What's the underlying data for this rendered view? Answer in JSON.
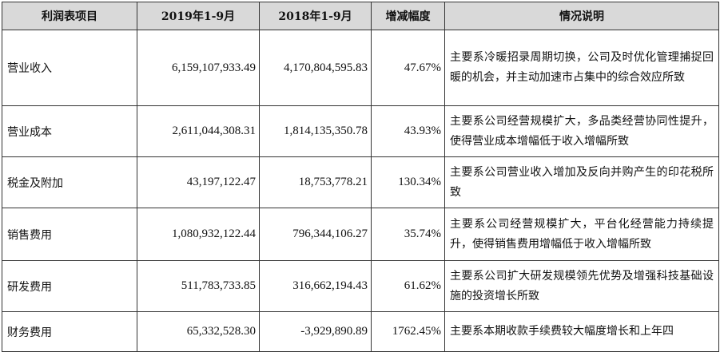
{
  "table": {
    "headers": [
      "利润表项目",
      "2019年1-9月",
      "2018年1-9月",
      "增减幅度",
      "情况说明"
    ],
    "rows": [
      {
        "item": "营业收入",
        "y2019": "6,159,107,933.49",
        "y2018": "4,170,804,595.83",
        "change": "47.67%",
        "note": "主要系冷暖招录周期切换，公司及时优化管理捕捉回暖的机会，并主动加速市占集中的综合效应所致"
      },
      {
        "item": "营业成本",
        "y2019": "2,611,044,308.31",
        "y2018": "1,814,135,350.78",
        "change": "43.93%",
        "note": "主要系公司经营规模扩大，多品类经营协同性提升，使得营业成本增幅低于收入增幅所致"
      },
      {
        "item": "税金及附加",
        "y2019": "43,197,122.47",
        "y2018": "18,753,778.21",
        "change": "130.34%",
        "note": "主要系公司营业收入增加及反向并购产生的印花税所致"
      },
      {
        "item": "销售费用",
        "y2019": "1,080,932,122.44",
        "y2018": "796,344,106.27",
        "change": "35.74%",
        "note": "主要系公司经营规模扩大，平台化经营能力持续提升，使得销售费用增幅低于收入增幅所致"
      },
      {
        "item": "研发费用",
        "y2019": "511,783,733.85",
        "y2018": "316,662,194.43",
        "change": "61.62%",
        "note": "主要系公司扩大研发规模领先优势及增强科技基础设施的投资增长所致"
      },
      {
        "item": "财务费用",
        "y2019": "65,332,528.30",
        "y2018": "-3,929,890.89",
        "change": "1762.45%",
        "note": "主要系本期收款手续费较大幅度增长和上年四"
      }
    ]
  }
}
